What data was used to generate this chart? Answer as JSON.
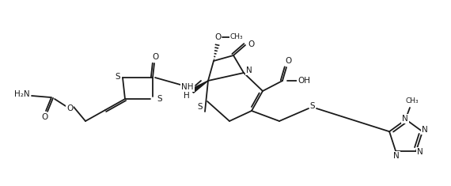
{
  "bg_color": "#ffffff",
  "lc": "#1a1a1a",
  "lw": 1.3,
  "fs": 7.5,
  "fs_small": 6.5,
  "figsize": [
    5.7,
    2.35
  ],
  "dpi": 100,
  "xlim": [
    0,
    570
  ],
  "ylim": [
    0,
    235
  ]
}
